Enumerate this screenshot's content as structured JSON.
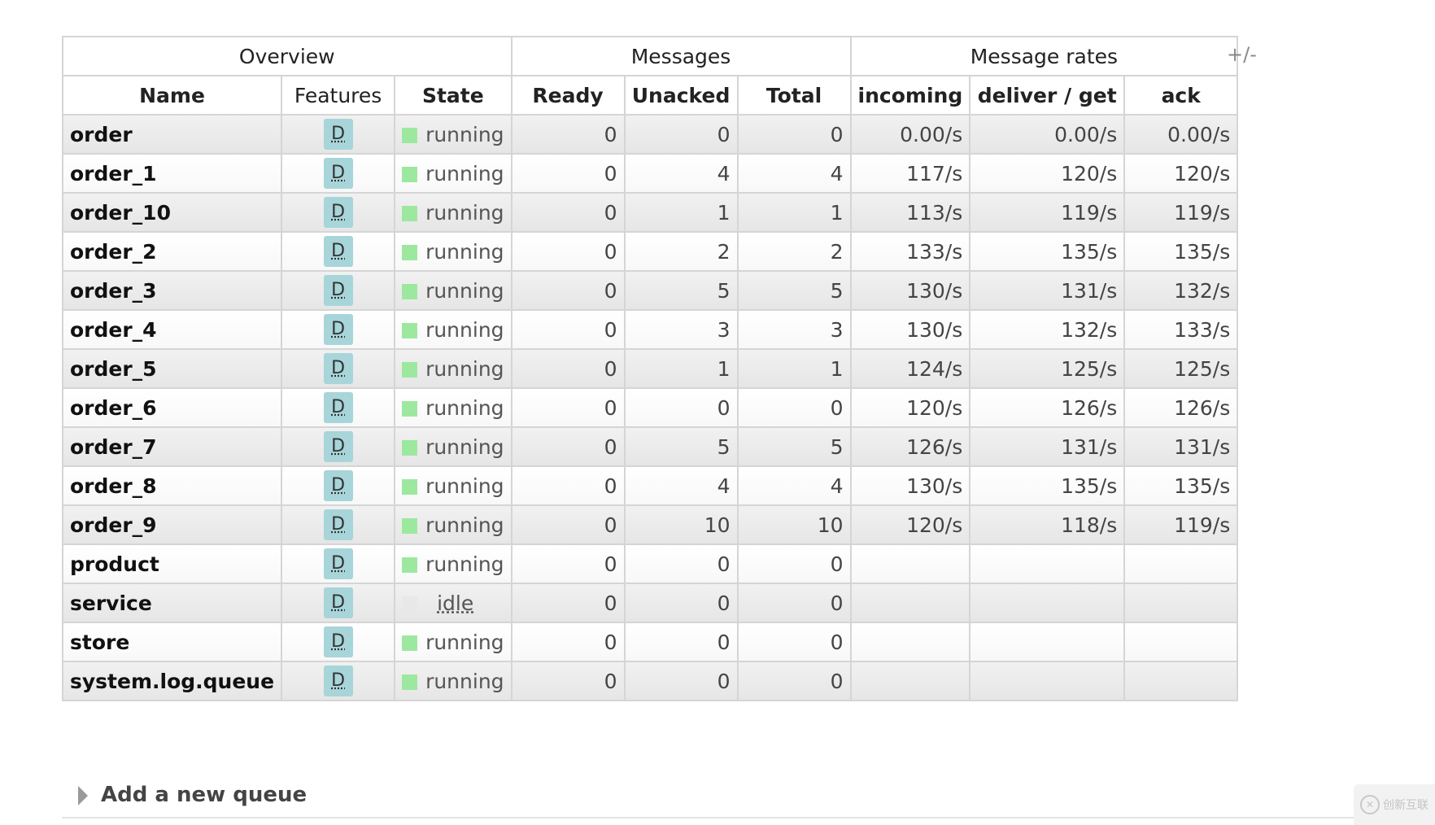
{
  "table": {
    "groups": [
      {
        "label": "Overview",
        "span": 3
      },
      {
        "label": "Messages",
        "span": 3
      },
      {
        "label": "Message rates",
        "span": 3
      }
    ],
    "columns": [
      "Name",
      "Features",
      "State",
      "Ready",
      "Unacked",
      "Total",
      "incoming",
      "deliver / get",
      "ack"
    ],
    "rows": [
      {
        "name": "order",
        "feature": "D",
        "state": "running",
        "ready": "0",
        "unacked": "0",
        "total": "0",
        "incoming": "0.00/s",
        "deliver": "0.00/s",
        "ack": "0.00/s"
      },
      {
        "name": "order_1",
        "feature": "D",
        "state": "running",
        "ready": "0",
        "unacked": "4",
        "total": "4",
        "incoming": "117/s",
        "deliver": "120/s",
        "ack": "120/s"
      },
      {
        "name": "order_10",
        "feature": "D",
        "state": "running",
        "ready": "0",
        "unacked": "1",
        "total": "1",
        "incoming": "113/s",
        "deliver": "119/s",
        "ack": "119/s"
      },
      {
        "name": "order_2",
        "feature": "D",
        "state": "running",
        "ready": "0",
        "unacked": "2",
        "total": "2",
        "incoming": "133/s",
        "deliver": "135/s",
        "ack": "135/s"
      },
      {
        "name": "order_3",
        "feature": "D",
        "state": "running",
        "ready": "0",
        "unacked": "5",
        "total": "5",
        "incoming": "130/s",
        "deliver": "131/s",
        "ack": "132/s"
      },
      {
        "name": "order_4",
        "feature": "D",
        "state": "running",
        "ready": "0",
        "unacked": "3",
        "total": "3",
        "incoming": "130/s",
        "deliver": "132/s",
        "ack": "133/s"
      },
      {
        "name": "order_5",
        "feature": "D",
        "state": "running",
        "ready": "0",
        "unacked": "1",
        "total": "1",
        "incoming": "124/s",
        "deliver": "125/s",
        "ack": "125/s"
      },
      {
        "name": "order_6",
        "feature": "D",
        "state": "running",
        "ready": "0",
        "unacked": "0",
        "total": "0",
        "incoming": "120/s",
        "deliver": "126/s",
        "ack": "126/s"
      },
      {
        "name": "order_7",
        "feature": "D",
        "state": "running",
        "ready": "0",
        "unacked": "5",
        "total": "5",
        "incoming": "126/s",
        "deliver": "131/s",
        "ack": "131/s"
      },
      {
        "name": "order_8",
        "feature": "D",
        "state": "running",
        "ready": "0",
        "unacked": "4",
        "total": "4",
        "incoming": "130/s",
        "deliver": "135/s",
        "ack": "135/s"
      },
      {
        "name": "order_9",
        "feature": "D",
        "state": "running",
        "ready": "0",
        "unacked": "10",
        "total": "10",
        "incoming": "120/s",
        "deliver": "118/s",
        "ack": "119/s"
      },
      {
        "name": "product",
        "feature": "D",
        "state": "running",
        "ready": "0",
        "unacked": "0",
        "total": "0",
        "incoming": "",
        "deliver": "",
        "ack": ""
      },
      {
        "name": "service",
        "feature": "D",
        "state": "idle",
        "ready": "0",
        "unacked": "0",
        "total": "0",
        "incoming": "",
        "deliver": "",
        "ack": ""
      },
      {
        "name": "store",
        "feature": "D",
        "state": "running",
        "ready": "0",
        "unacked": "0",
        "total": "0",
        "incoming": "",
        "deliver": "",
        "ack": ""
      },
      {
        "name": "system.log.queue",
        "feature": "D",
        "state": "running",
        "ready": "0",
        "unacked": "0",
        "total": "0",
        "incoming": "",
        "deliver": "",
        "ack": ""
      }
    ]
  },
  "toggle_columns_label": "+/-",
  "add_queue": {
    "label": "Add a new queue",
    "icon": "caret-right-icon"
  },
  "watermark": {
    "label": "创新互联",
    "icon": "logo-icon"
  },
  "colors": {
    "running": "#9de89f",
    "idle": "#e8e8e8",
    "feature_badge": "#a8d5d9"
  }
}
